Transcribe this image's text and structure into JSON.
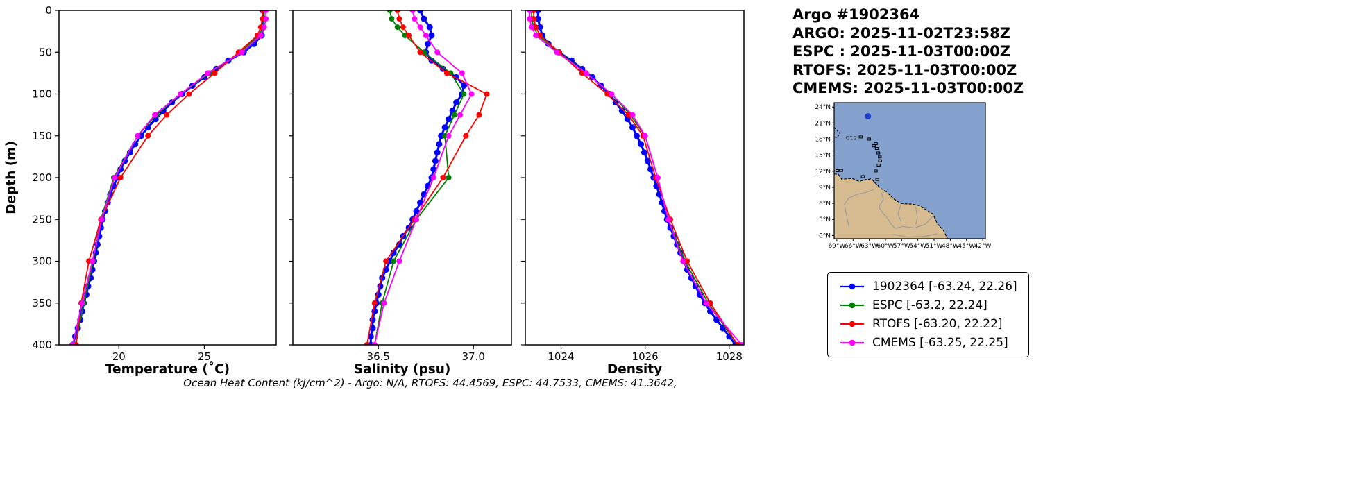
{
  "header": {
    "title": "Argo #1902364",
    "lines": [
      "ARGO: 2025-11-02T23:58Z",
      "ESPC : 2025-11-03T00:00Z",
      "RTOFS: 2025-11-03T00:00Z",
      "CMEMS: 2025-11-03T00:00Z"
    ]
  },
  "footer": {
    "ohc_text": "Ocean Heat Content (kJ/cm^2) - Argo: N/A,  RTOFS: 44.4569,  ESPC: 44.7533,  CMEMS: 41.3642,"
  },
  "axes": {
    "ylabel": "Depth (m)"
  },
  "legend": {
    "items": [
      {
        "label": "1902364 [-63.24, 22.26]",
        "color": "#0000ff"
      },
      {
        "label": "ESPC [-63.2, 22.24]",
        "color": "#008000"
      },
      {
        "label": "RTOFS [-63.20, 22.22]",
        "color": "#ff0000"
      },
      {
        "label": "CMEMS [-63.25, 22.25]",
        "color": "#ff00ff"
      }
    ]
  },
  "map": {
    "colors": {
      "ocean": "#84a0cd",
      "land": "#d6ba90",
      "border": "#9c9c9c"
    },
    "float": {
      "lon": -63.24,
      "lat": 22.26,
      "color": "#2040cc"
    },
    "lat_ticks": [
      {
        "v": 24,
        "label": "24°N"
      },
      {
        "v": 21,
        "label": "21°N"
      },
      {
        "v": 18,
        "label": "18°N"
      },
      {
        "v": 15,
        "label": "15°N"
      },
      {
        "v": 12,
        "label": "12°N"
      },
      {
        "v": 9,
        "label": "9°N"
      },
      {
        "v": 6,
        "label": "6°N"
      },
      {
        "v": 3,
        "label": "3°N"
      },
      {
        "v": 0,
        "label": "0°N"
      }
    ],
    "lon_ticks": [
      {
        "v": -69,
        "label": "69°W"
      },
      {
        "v": -66,
        "label": "66°W"
      },
      {
        "v": -63,
        "label": "63°W"
      },
      {
        "v": -60,
        "label": "60°W"
      },
      {
        "v": -57,
        "label": "57°W"
      },
      {
        "v": -54,
        "label": "54°W"
      },
      {
        "v": -51,
        "label": "51°W"
      },
      {
        "v": -48,
        "label": "48°W"
      },
      {
        "v": -45,
        "label": "45°W"
      },
      {
        "v": -42,
        "label": "42°W"
      }
    ]
  },
  "chart_data": [
    {
      "type": "line",
      "xlabel": "Temperature (˚C)",
      "ylabel": "Depth (m)",
      "xlim": [
        16.5,
        29.2
      ],
      "ylim": [
        0,
        400
      ],
      "y_inverted": true,
      "grid": false,
      "xticks": [
        {
          "v": 20,
          "label": "20"
        },
        {
          "v": 25,
          "label": "25"
        }
      ],
      "yticks": [
        0,
        50,
        100,
        150,
        200,
        250,
        300,
        350,
        400
      ],
      "series": [
        {
          "name": "1902364",
          "color": "#0000ff",
          "lw": 3,
          "ms": 4.5,
          "depths": [
            0,
            10,
            20,
            30,
            40,
            50,
            60,
            70,
            80,
            90,
            100,
            110,
            120,
            130,
            140,
            150,
            160,
            170,
            180,
            190,
            200,
            210,
            220,
            230,
            240,
            250,
            260,
            270,
            280,
            290,
            300,
            310,
            320,
            330,
            340,
            350,
            360,
            370,
            380,
            390,
            400
          ],
          "values": [
            28.4,
            28.45,
            28.45,
            28.35,
            27.9,
            27.3,
            26.4,
            25.7,
            25.0,
            24.3,
            23.7,
            23.1,
            22.6,
            22.15,
            21.7,
            21.3,
            20.95,
            20.65,
            20.35,
            20.1,
            19.9,
            19.7,
            19.5,
            19.35,
            19.2,
            19.05,
            18.95,
            18.85,
            18.75,
            18.65,
            18.55,
            18.45,
            18.35,
            18.2,
            18.1,
            17.95,
            17.85,
            17.75,
            17.6,
            17.45,
            17.3
          ]
        },
        {
          "name": "ESPC",
          "color": "#008000",
          "lw": 1.8,
          "ms": 4,
          "depths": [
            0,
            10,
            20,
            30,
            50,
            75,
            100,
            125,
            150,
            200,
            250,
            300,
            350,
            400
          ],
          "values": [
            28.5,
            28.5,
            28.4,
            28.2,
            27.1,
            25.3,
            23.6,
            22.2,
            21.1,
            19.7,
            18.95,
            18.5,
            17.95,
            17.45
          ]
        },
        {
          "name": "RTOFS",
          "color": "#ff0000",
          "lw": 1.8,
          "ms": 4,
          "depths": [
            0,
            10,
            20,
            30,
            50,
            75,
            100,
            125,
            150,
            200,
            250,
            300,
            350,
            400
          ],
          "values": [
            28.4,
            28.4,
            28.3,
            28.1,
            27.0,
            25.6,
            24.1,
            22.8,
            21.7,
            20.1,
            18.95,
            18.25,
            17.8,
            17.5
          ]
        },
        {
          "name": "CMEMS",
          "color": "#ff00ff",
          "lw": 1.8,
          "ms": 4,
          "depths": [
            0,
            10,
            20,
            30,
            50,
            75,
            100,
            125,
            150,
            200,
            250,
            300,
            350,
            400
          ],
          "values": [
            28.6,
            28.6,
            28.5,
            28.3,
            27.2,
            25.2,
            23.6,
            22.1,
            21.1,
            19.75,
            19.0,
            18.45,
            17.85,
            17.3
          ]
        }
      ]
    },
    {
      "type": "line",
      "xlabel": "Salinity (psu)",
      "ylabel": "Depth (m)",
      "xlim": [
        36.05,
        37.2
      ],
      "ylim": [
        0,
        400
      ],
      "y_inverted": true,
      "grid": false,
      "xticks": [
        {
          "v": 36.5,
          "label": "36.5"
        },
        {
          "v": 37.0,
          "label": "37.0"
        }
      ],
      "yticks": [
        0,
        50,
        100,
        150,
        200,
        250,
        300,
        350,
        400
      ],
      "series": [
        {
          "name": "1902364",
          "color": "#0000ff",
          "lw": 3,
          "ms": 4.5,
          "depths": [
            0,
            10,
            20,
            30,
            40,
            50,
            60,
            70,
            80,
            90,
            100,
            110,
            120,
            130,
            140,
            150,
            160,
            170,
            180,
            190,
            200,
            210,
            220,
            230,
            240,
            250,
            260,
            270,
            280,
            290,
            300,
            310,
            320,
            330,
            340,
            350,
            360,
            370,
            380,
            390,
            400
          ],
          "values": [
            36.72,
            36.74,
            36.77,
            36.78,
            36.76,
            36.75,
            36.78,
            36.84,
            36.91,
            36.95,
            36.94,
            36.91,
            36.89,
            36.87,
            36.85,
            36.83,
            36.82,
            36.81,
            36.8,
            36.79,
            36.78,
            36.76,
            36.74,
            36.72,
            36.7,
            36.68,
            36.66,
            36.63,
            36.61,
            36.58,
            36.56,
            36.54,
            36.52,
            36.51,
            36.5,
            36.49,
            36.48,
            36.47,
            36.47,
            36.46,
            36.46
          ]
        },
        {
          "name": "ESPC",
          "color": "#008000",
          "lw": 1.8,
          "ms": 4,
          "depths": [
            0,
            10,
            20,
            30,
            50,
            75,
            100,
            125,
            150,
            200,
            250,
            300,
            350,
            400
          ],
          "values": [
            36.56,
            36.57,
            36.6,
            36.64,
            36.74,
            36.88,
            36.95,
            36.9,
            36.85,
            36.87,
            36.7,
            36.58,
            36.52,
            36.48
          ]
        },
        {
          "name": "RTOFS",
          "color": "#ff0000",
          "lw": 1.8,
          "ms": 4,
          "depths": [
            0,
            10,
            20,
            30,
            50,
            75,
            100,
            125,
            150,
            200,
            250,
            300,
            350,
            400
          ],
          "values": [
            36.6,
            36.61,
            36.63,
            36.66,
            36.72,
            36.86,
            37.07,
            37.03,
            36.96,
            36.84,
            36.69,
            36.54,
            36.48,
            36.44
          ]
        },
        {
          "name": "CMEMS",
          "color": "#ff00ff",
          "lw": 1.8,
          "ms": 4,
          "depths": [
            0,
            10,
            20,
            30,
            50,
            75,
            100,
            125,
            150,
            200,
            250,
            300,
            350,
            400
          ],
          "values": [
            36.68,
            36.69,
            36.72,
            36.75,
            36.81,
            36.94,
            36.99,
            36.93,
            36.87,
            36.79,
            36.7,
            36.61,
            36.53,
            36.48
          ]
        }
      ]
    },
    {
      "type": "line",
      "xlabel": "Density",
      "ylabel": "Depth (m)",
      "xlim": [
        1023.15,
        1028.35
      ],
      "ylim": [
        0,
        400
      ],
      "y_inverted": true,
      "grid": false,
      "xticks": [
        {
          "v": 1024,
          "label": "1024"
        },
        {
          "v": 1026,
          "label": "1026"
        },
        {
          "v": 1028,
          "label": "1028"
        }
      ],
      "yticks": [
        0,
        50,
        100,
        150,
        200,
        250,
        300,
        350,
        400
      ],
      "series": [
        {
          "name": "1902364",
          "color": "#0000ff",
          "lw": 3,
          "ms": 4.5,
          "depths": [
            0,
            10,
            20,
            30,
            40,
            50,
            60,
            70,
            80,
            90,
            100,
            110,
            120,
            130,
            140,
            150,
            160,
            170,
            180,
            190,
            200,
            210,
            220,
            230,
            240,
            250,
            260,
            270,
            280,
            290,
            300,
            310,
            320,
            330,
            340,
            350,
            360,
            370,
            380,
            390,
            400
          ],
          "values": [
            1023.45,
            1023.45,
            1023.5,
            1023.55,
            1023.7,
            1023.95,
            1024.25,
            1024.5,
            1024.75,
            1024.95,
            1025.15,
            1025.3,
            1025.45,
            1025.58,
            1025.7,
            1025.8,
            1025.9,
            1025.98,
            1026.06,
            1026.13,
            1026.2,
            1026.27,
            1026.34,
            1026.4,
            1026.46,
            1026.52,
            1026.6,
            1026.68,
            1026.76,
            1026.84,
            1026.92,
            1027.0,
            1027.1,
            1027.2,
            1027.3,
            1027.42,
            1027.55,
            1027.7,
            1027.85,
            1028.0,
            1028.15
          ]
        },
        {
          "name": "ESPC",
          "color": "#008000",
          "lw": 1.8,
          "ms": 4,
          "depths": [
            0,
            10,
            20,
            30,
            50,
            75,
            100,
            125,
            150,
            200,
            250,
            300,
            350,
            400
          ],
          "values": [
            1023.3,
            1023.3,
            1023.35,
            1023.45,
            1023.95,
            1024.6,
            1025.2,
            1025.65,
            1026.0,
            1026.3,
            1026.55,
            1026.95,
            1027.5,
            1028.2
          ]
        },
        {
          "name": "RTOFS",
          "color": "#ff0000",
          "lw": 1.8,
          "ms": 4,
          "depths": [
            0,
            10,
            20,
            30,
            50,
            75,
            100,
            125,
            150,
            200,
            250,
            300,
            350,
            400
          ],
          "values": [
            1023.35,
            1023.35,
            1023.4,
            1023.5,
            1023.95,
            1024.5,
            1025.1,
            1025.6,
            1025.95,
            1026.25,
            1026.6,
            1027.0,
            1027.55,
            1028.2
          ]
        },
        {
          "name": "CMEMS",
          "color": "#ff00ff",
          "lw": 1.8,
          "ms": 4,
          "depths": [
            0,
            10,
            20,
            30,
            50,
            75,
            100,
            125,
            150,
            200,
            250,
            300,
            350,
            400
          ],
          "values": [
            1023.25,
            1023.25,
            1023.3,
            1023.4,
            1023.9,
            1024.6,
            1025.2,
            1025.7,
            1026.0,
            1026.3,
            1026.55,
            1026.9,
            1027.45,
            1028.3
          ]
        }
      ]
    }
  ]
}
